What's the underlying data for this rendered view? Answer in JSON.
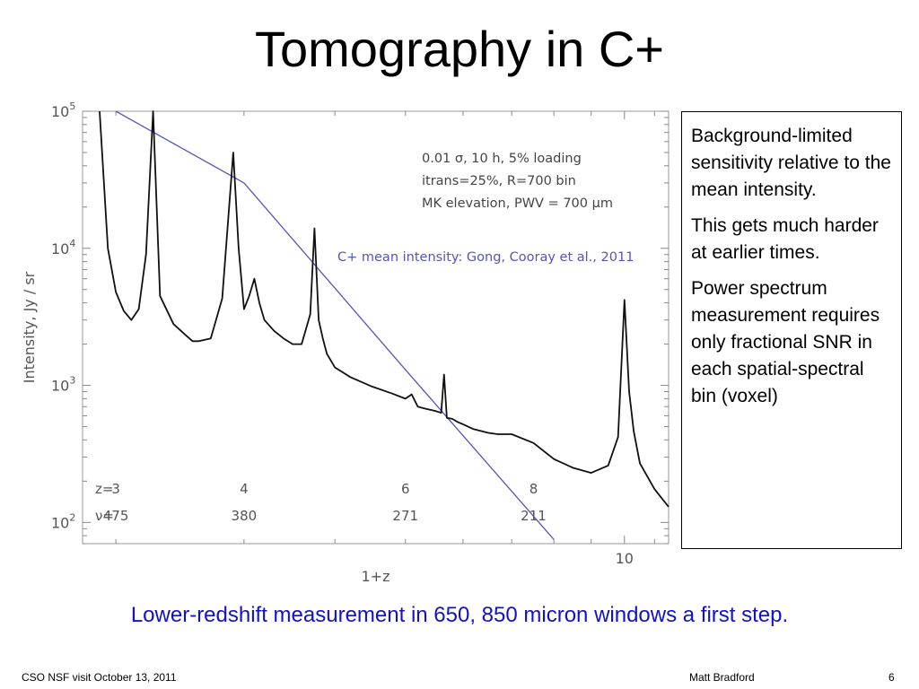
{
  "slide": {
    "title": "Tomography in C+",
    "caption": "Lower-redshift measurement in 650, 850 micron windows a first step.",
    "footer_left": "CSO NSF visit  October 13, 2011",
    "footer_center": "Matt Bradford",
    "page_number": "6"
  },
  "notes": [
    "Background-limited sensitivity relative to the mean intensity.",
    "This gets much harder at earlier times.",
    "Power spectrum measurement requires only fractional SNR in each spatial-spectral bin (voxel)"
  ],
  "chart_data": {
    "type": "line",
    "xlabel": "1+z",
    "ylabel": "Intensity, Jy / sr",
    "x_scale": "log",
    "y_scale": "log",
    "xlim": [
      1.8,
      11.5
    ],
    "ylim": [
      70,
      100000
    ],
    "x_tick_labels": [
      {
        "value": 10,
        "label": "10"
      }
    ],
    "y_tick_labels": [
      {
        "value": 100,
        "base": "10",
        "exp": "2"
      },
      {
        "value": 1000,
        "base": "10",
        "exp": "3"
      },
      {
        "value": 10000,
        "base": "10",
        "exp": "4"
      },
      {
        "value": 100000,
        "base": "10",
        "exp": "5"
      }
    ],
    "grid": false,
    "annotations": [
      "0.01 σ, 10 h, 5% loading",
      "itrans=25%, R=700 bin",
      "MK elevation, PWV = 700 μm"
    ],
    "series": [
      {
        "name": "C+ mean intensity: Gong, Cooray et al., 2011",
        "color": "#5555bb",
        "x": [
          2.0,
          3.0,
          5.0,
          8.0
        ],
        "y": [
          100000,
          30000,
          1300,
          75
        ]
      },
      {
        "color": "#111111",
        "x": [
          1.9,
          1.95,
          2.0,
          2.05,
          2.1,
          2.15,
          2.2,
          2.25,
          2.3,
          2.4,
          2.5,
          2.55,
          2.6,
          2.7,
          2.8,
          2.9,
          2.95,
          3.0,
          3.05,
          3.1,
          3.15,
          3.2,
          3.3,
          3.4,
          3.5,
          3.6,
          3.7,
          3.75,
          3.8,
          3.85,
          3.9,
          4.0,
          4.2,
          4.5,
          4.8,
          5.0,
          5.1,
          5.2,
          5.3,
          5.5,
          5.6,
          5.65,
          5.7,
          5.8,
          5.9,
          6.0,
          6.2,
          6.5,
          6.7,
          7.0,
          7.5,
          8.0,
          8.5,
          9.0,
          9.5,
          9.8,
          10.0,
          10.15,
          10.3,
          10.5,
          11.0,
          11.5
        ],
        "y": [
          100000,
          10000,
          4800,
          3500,
          3000,
          3600,
          9000,
          100000,
          4500,
          2800,
          2300,
          2100,
          2100,
          2200,
          4300,
          50000,
          10000,
          3600,
          4500,
          6000,
          4000,
          3000,
          2500,
          2200,
          2000,
          2000,
          3300,
          14000,
          3000,
          2200,
          1700,
          1350,
          1150,
          980,
          870,
          800,
          860,
          700,
          680,
          650,
          630,
          1200,
          580,
          570,
          540,
          520,
          480,
          450,
          440,
          440,
          380,
          290,
          250,
          230,
          260,
          420,
          4200,
          900,
          460,
          270,
          175,
          130
        ]
      }
    ],
    "z_axis": {
      "z_label": "z=",
      "nu_label": "ν=",
      "ticks": [
        {
          "x": 2.0,
          "z": "3",
          "nu": "475"
        },
        {
          "x": 3.0,
          "z": "4",
          "nu": "380"
        },
        {
          "x": 5.0,
          "z": "6",
          "nu": "271"
        },
        {
          "x": 7.5,
          "z": "8",
          "nu": "211"
        }
      ]
    }
  }
}
